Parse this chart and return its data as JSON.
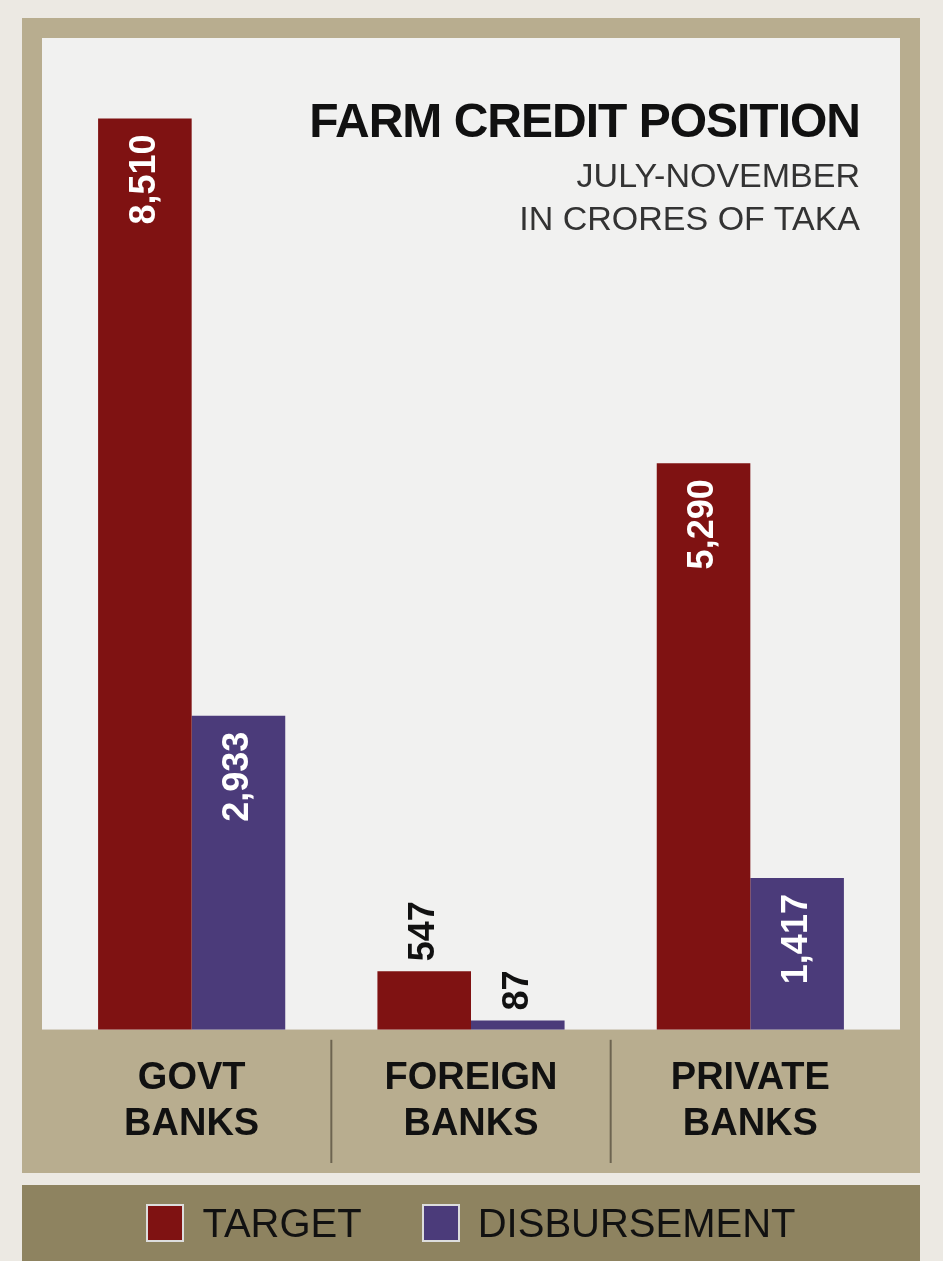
{
  "chart_data": {
    "type": "bar",
    "title": "FARM CREDIT POSITION",
    "subtitle": "JULY-NOVEMBER\nIN CRORES OF TAKA",
    "categories": [
      "GOVT BANKS",
      "FOREIGN BANKS",
      "PRIVATE BANKS"
    ],
    "series": [
      {
        "name": "TARGET",
        "color": "#7f1212",
        "values": [
          8510,
          547,
          5290
        ],
        "value_labels": [
          "8,510",
          "547",
          "5,290"
        ]
      },
      {
        "name": "DISBURSEMENT",
        "color": "#4b3b7a",
        "values": [
          2933,
          87,
          1417
        ],
        "value_labels": [
          "2,933",
          "87",
          "1,417"
        ]
      }
    ],
    "legend": "bottom",
    "grid": false
  }
}
